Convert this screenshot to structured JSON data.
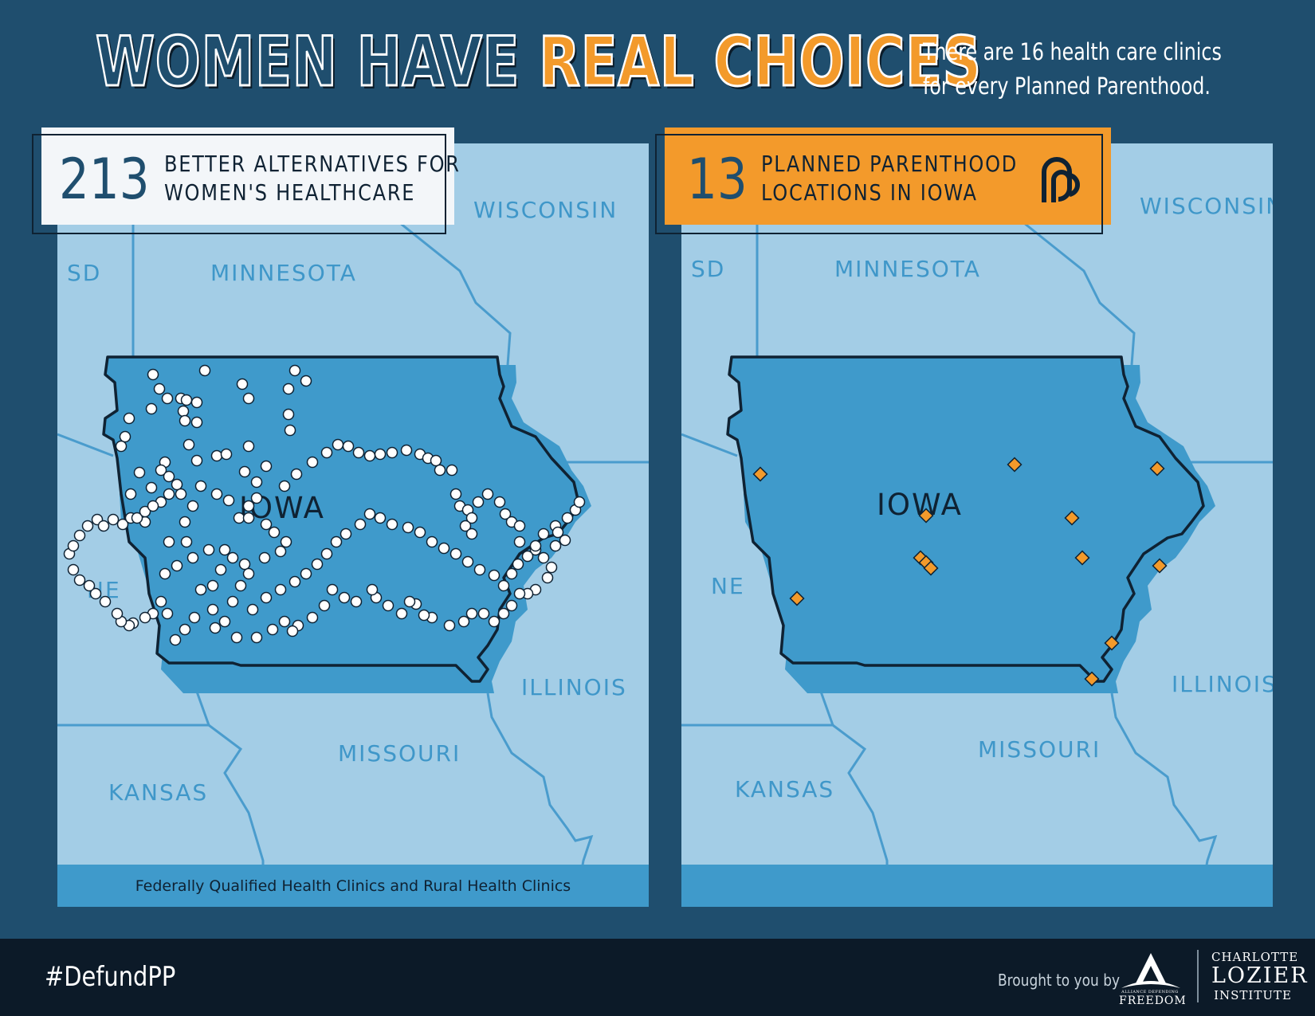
{
  "header": {
    "title_part1": "WOMEN HAVE ",
    "title_part2": "REAL CHOICES",
    "subtitle_line1": "There are 16 health care clinics",
    "subtitle_line2": "for every Planned Parenthood."
  },
  "left_panel": {
    "count": "213",
    "label_line1": "BETTER ALTERNATIVES FOR",
    "label_line2": "WOMEN'S HEALTHCARE",
    "caption": "Federally Qualified Health Clinics and Rural Health Clinics",
    "marker_color": "#ffffff",
    "badge_color": "#f3f6f9"
  },
  "right_panel": {
    "count": "13",
    "label_line1": "PLANNED PARENTHOOD",
    "label_line2": "LOCATIONS IN IOWA",
    "icon": "planned-parenthood-logo-icon",
    "marker_color": "#f39a2b",
    "badge_color": "#f39a2b"
  },
  "map": {
    "state_labels": {
      "sd": "SD",
      "minnesota": "MINNESOTA",
      "wisconsin": "WISCONSIN",
      "ne": "NE",
      "illinois": "ILLINOIS",
      "missouri": "MISSOURI",
      "kansas": "KANSAS",
      "iowa": "IOWA"
    },
    "colors": {
      "land": "#a3cde6",
      "iowa_fill": "#3f9acb",
      "border": "#4a9ccd",
      "outline": "#0f2233"
    }
  },
  "footer": {
    "hashtag": "#DefundPP",
    "brought_by": "Brought to you by",
    "adf_line1": "ALLIANCE DEFENDING",
    "adf_line2": "FREEDOM",
    "cli_line1": "CHARLOTTE",
    "cli_line2": "LOZIER",
    "cli_line3": "INSTITUTE"
  }
}
